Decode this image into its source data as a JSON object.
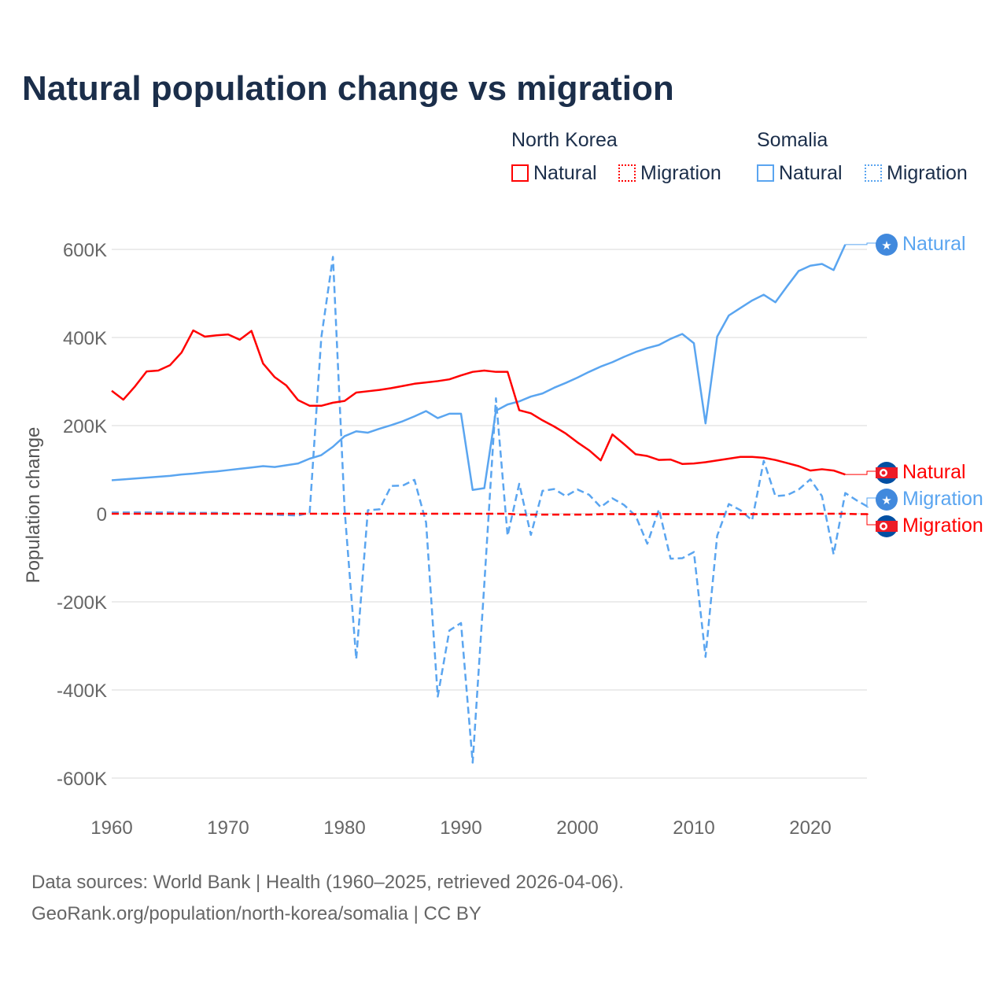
{
  "title": "Natural population change vs migration",
  "legend": {
    "groups": [
      {
        "name": "North Korea",
        "items": [
          "Natural",
          "Migration"
        ],
        "color": "#ff0000"
      },
      {
        "name": "Somalia",
        "items": [
          "Natural",
          "Migration"
        ],
        "color": "#5aa5f0"
      }
    ]
  },
  "footer": {
    "line1": "Data sources: World Bank | Health (1960–2025, retrieved 2026-04-06).",
    "line2": "GeoRank.org/population/north-korea/somalia | CC BY"
  },
  "chart_data": {
    "type": "line",
    "ylabel": "Population change",
    "ylim": [
      -600000,
      600000
    ],
    "xlim": [
      1960,
      2025
    ],
    "yticks": [
      {
        "v": 600000,
        "l": "600K"
      },
      {
        "v": 400000,
        "l": "400K"
      },
      {
        "v": 200000,
        "l": "200K"
      },
      {
        "v": 0,
        "l": "0"
      },
      {
        "v": -200000,
        "l": "-200K"
      },
      {
        "v": -400000,
        "l": "-400K"
      },
      {
        "v": -600000,
        "l": "-600K"
      }
    ],
    "xticks": [
      1960,
      1970,
      1980,
      1990,
      2000,
      2010,
      2020
    ],
    "grid": true,
    "series": [
      {
        "name": "North Korea Natural",
        "label": "Natural",
        "color": "#ff0000",
        "dash": false,
        "flag": "north-korea",
        "start": 1960,
        "values_k": [
          279,
          259,
          289,
          323,
          325,
          337,
          366,
          416,
          402,
          405,
          407,
          395,
          415,
          341,
          310,
          291,
          258,
          245,
          245,
          252,
          256,
          275,
          278,
          281,
          285,
          290,
          295,
          298,
          301,
          305,
          314,
          322,
          325,
          322,
          322,
          235,
          228,
          212,
          198,
          182,
          162,
          144,
          121,
          180,
          158,
          135,
          131,
          122,
          123,
          113,
          114,
          117,
          121,
          125,
          129,
          129,
          127,
          122,
          115,
          108,
          98,
          101,
          98,
          89
        ]
      },
      {
        "name": "North Korea Migration",
        "label": "Migration",
        "color": "#ff0000",
        "dash": true,
        "flag": "north-korea",
        "start": 1960,
        "values_k": [
          0,
          0,
          0,
          0,
          0,
          0,
          0,
          0,
          0,
          0,
          0,
          0,
          0,
          0,
          0,
          0,
          0,
          0,
          0,
          0,
          0,
          0,
          0,
          0,
          0,
          0,
          0,
          0,
          0,
          0,
          0,
          0,
          0,
          0,
          0,
          -2,
          -2,
          -2,
          -2,
          -2,
          -2,
          -2,
          -1,
          -1,
          -1,
          -1,
          -1,
          -1,
          -1,
          -1,
          -1,
          -1,
          -1,
          -1,
          -1,
          -1,
          -1,
          -1,
          -1,
          -1,
          0,
          0,
          0,
          0,
          -1,
          -1
        ]
      },
      {
        "name": "Somalia Natural",
        "label": "Natural",
        "color": "#5aa5f0",
        "dash": false,
        "flag": "somalia",
        "start": 1960,
        "values_k": [
          76,
          78,
          80,
          82,
          84,
          86,
          89,
          91,
          94,
          96,
          99,
          102,
          105,
          108,
          106,
          110,
          114,
          125,
          133,
          152,
          176,
          187,
          184,
          193,
          201,
          210,
          221,
          233,
          217,
          227,
          227,
          54,
          58,
          234,
          248,
          255,
          266,
          273,
          286,
          297,
          309,
          322,
          334,
          344,
          356,
          367,
          376,
          383,
          397,
          408,
          387,
          205,
          402,
          450,
          467,
          484,
          497,
          480,
          516,
          551,
          563,
          567,
          553,
          611
        ]
      },
      {
        "name": "Somalia Migration",
        "label": "Migration",
        "color": "#5aa5f0",
        "dash": true,
        "flag": "somalia",
        "start": 1960,
        "values_k": [
          3,
          3,
          3,
          3,
          3,
          3,
          2,
          2,
          2,
          2,
          1,
          0,
          0,
          -1,
          -2,
          -3,
          -4,
          2,
          400,
          583,
          10,
          -330,
          8,
          10,
          63,
          64,
          77,
          -20,
          -415,
          -265,
          -248,
          -565,
          -160,
          262,
          -50,
          68,
          -48,
          52,
          56,
          40,
          55,
          43,
          15,
          35,
          20,
          -5,
          -68,
          10,
          -102,
          -101,
          -87,
          -325,
          -50,
          22,
          8,
          -15,
          120,
          40,
          42,
          55,
          78,
          40,
          -92,
          47,
          30,
          15
        ]
      }
    ]
  }
}
